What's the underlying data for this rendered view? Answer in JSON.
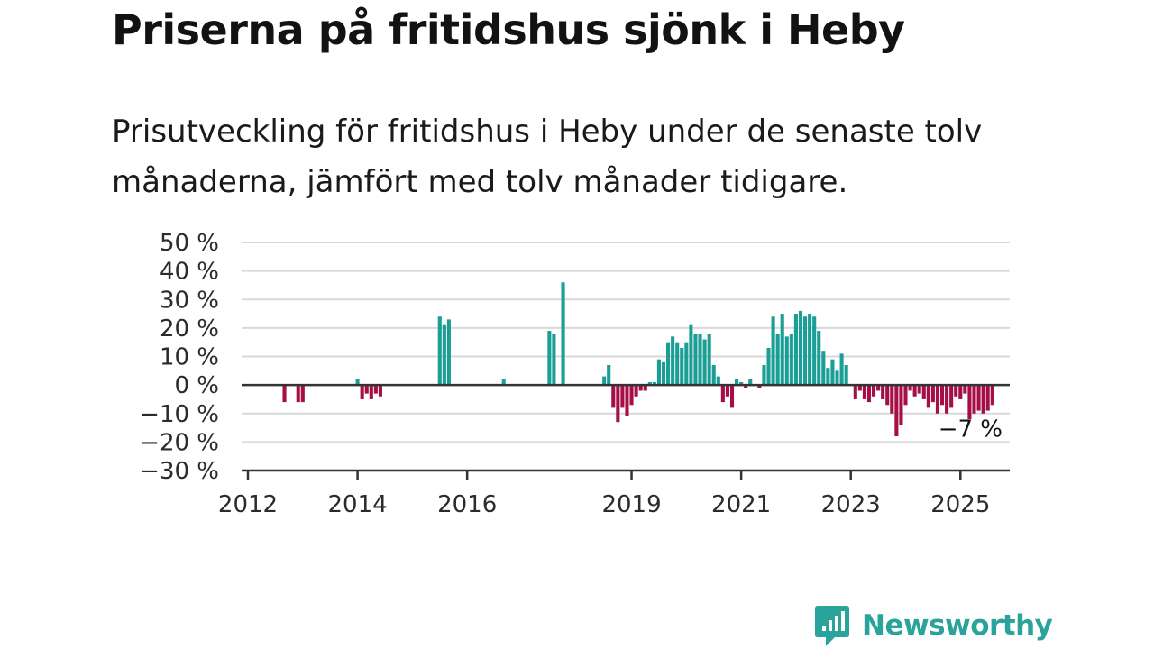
{
  "title": "Priserna på fritidshus sjönk i Heby",
  "subtitle": "Prisutveckling för fritidshus i Heby under de senaste tolv månaderna, jämfört med tolv månader tidigare.",
  "brand": {
    "name": "Newsworthy",
    "color": "#2aa49a",
    "icon": "newsworthy-chart-logo-icon"
  },
  "colors": {
    "positive": "#1a9e96",
    "negative": "#a50f46",
    "grid": "#d9d9d9",
    "zero_line": "#333333"
  },
  "chart_data": {
    "type": "bar",
    "title": "Priserna på fritidshus sjönk i Heby",
    "xlabel": "",
    "ylabel": "",
    "ylim": [
      -30,
      50
    ],
    "y_ticks": [
      50,
      40,
      30,
      20,
      10,
      0,
      -10,
      -20,
      -30
    ],
    "y_tick_labels": [
      "50 %",
      "40 %",
      "30 %",
      "20 %",
      "10 %",
      "0 %",
      "−10 %",
      "−20 %",
      "−30 %"
    ],
    "x_ticks": [
      "2012-01",
      "2014-01",
      "2016-01",
      "2019-01",
      "2021-01",
      "2023-01",
      "2025-01"
    ],
    "x_tick_labels": [
      "2012",
      "2014",
      "2016",
      "2019",
      "2021",
      "2023",
      "2025"
    ],
    "grid": true,
    "end_label": "−7 %",
    "series": [
      {
        "values": [
          [
            "2012-09",
            -6
          ],
          [
            "2012-10",
            0
          ],
          [
            "2012-11",
            0
          ],
          [
            "2012-12",
            -6
          ],
          [
            "2013-01",
            -6
          ],
          [
            "2014-01",
            2
          ],
          [
            "2014-02",
            -5
          ],
          [
            "2014-03",
            -3
          ],
          [
            "2014-04",
            -5
          ],
          [
            "2014-05",
            -3
          ],
          [
            "2014-06",
            -4
          ],
          [
            "2015-07",
            24
          ],
          [
            "2015-08",
            21
          ],
          [
            "2015-09",
            23
          ],
          [
            "2016-09",
            2
          ],
          [
            "2017-07",
            19
          ],
          [
            "2017-08",
            18
          ],
          [
            "2017-10",
            36
          ],
          [
            "2018-07",
            3
          ],
          [
            "2018-08",
            7
          ],
          [
            "2018-09",
            -8
          ],
          [
            "2018-10",
            -13
          ],
          [
            "2018-11",
            -8
          ],
          [
            "2018-12",
            -11
          ],
          [
            "2019-01",
            -7
          ],
          [
            "2019-02",
            -4
          ],
          [
            "2019-03",
            -2
          ],
          [
            "2019-04",
            -2
          ],
          [
            "2019-05",
            1
          ],
          [
            "2019-06",
            1
          ],
          [
            "2019-07",
            9
          ],
          [
            "2019-08",
            8
          ],
          [
            "2019-09",
            15
          ],
          [
            "2019-10",
            17
          ],
          [
            "2019-11",
            15
          ],
          [
            "2019-12",
            13
          ],
          [
            "2020-01",
            15
          ],
          [
            "2020-02",
            21
          ],
          [
            "2020-03",
            18
          ],
          [
            "2020-04",
            18
          ],
          [
            "2020-05",
            16
          ],
          [
            "2020-06",
            18
          ],
          [
            "2020-07",
            7
          ],
          [
            "2020-08",
            3
          ],
          [
            "2020-09",
            -6
          ],
          [
            "2020-10",
            -4
          ],
          [
            "2020-11",
            -8
          ],
          [
            "2020-12",
            2
          ],
          [
            "2021-01",
            1
          ],
          [
            "2021-02",
            -1
          ],
          [
            "2021-03",
            2
          ],
          [
            "2021-05",
            -1
          ],
          [
            "2021-06",
            7
          ],
          [
            "2021-07",
            13
          ],
          [
            "2021-08",
            24
          ],
          [
            "2021-09",
            18
          ],
          [
            "2021-10",
            25
          ],
          [
            "2021-11",
            17
          ],
          [
            "2021-12",
            18
          ],
          [
            "2022-01",
            25
          ],
          [
            "2022-02",
            26
          ],
          [
            "2022-03",
            24
          ],
          [
            "2022-04",
            25
          ],
          [
            "2022-05",
            24
          ],
          [
            "2022-06",
            19
          ],
          [
            "2022-07",
            12
          ],
          [
            "2022-08",
            6
          ],
          [
            "2022-09",
            9
          ],
          [
            "2022-10",
            5
          ],
          [
            "2022-11",
            11
          ],
          [
            "2022-12",
            7
          ],
          [
            "2023-02",
            -5
          ],
          [
            "2023-03",
            -2
          ],
          [
            "2023-04",
            -5
          ],
          [
            "2023-05",
            -6
          ],
          [
            "2023-06",
            -4
          ],
          [
            "2023-07",
            -2
          ],
          [
            "2023-08",
            -5
          ],
          [
            "2023-09",
            -7
          ],
          [
            "2023-10",
            -10
          ],
          [
            "2023-11",
            -18
          ],
          [
            "2023-12",
            -14
          ],
          [
            "2024-01",
            -7
          ],
          [
            "2024-02",
            -2
          ],
          [
            "2024-03",
            -4
          ],
          [
            "2024-04",
            -3
          ],
          [
            "2024-05",
            -5
          ],
          [
            "2024-06",
            -8
          ],
          [
            "2024-07",
            -6
          ],
          [
            "2024-08",
            -10
          ],
          [
            "2024-09",
            -7
          ],
          [
            "2024-10",
            -10
          ],
          [
            "2024-11",
            -8
          ],
          [
            "2024-12",
            -4
          ],
          [
            "2025-01",
            -5
          ],
          [
            "2025-02",
            -3
          ],
          [
            "2025-03",
            -12
          ],
          [
            "2025-04",
            -10
          ],
          [
            "2025-05",
            -9
          ],
          [
            "2025-06",
            -10
          ],
          [
            "2025-07",
            -9
          ],
          [
            "2025-08",
            -7
          ]
        ]
      }
    ]
  }
}
